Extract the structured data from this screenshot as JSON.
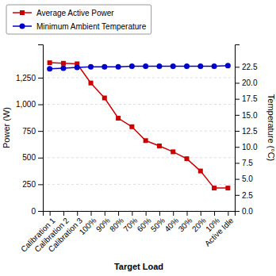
{
  "chart_data": {
    "type": "line",
    "xlabel": "Target Load",
    "ylabel": "Power (W)",
    "y2label": "Temperature (°C)",
    "categories": [
      "Calibration 1",
      "Calibration 2",
      "Calibration 3",
      "100%",
      "90%",
      "80%",
      "70%",
      "60%",
      "50%",
      "40%",
      "30%",
      "20%",
      "10%",
      "Active Idle"
    ],
    "series": [
      {
        "name": "Average Active Power",
        "color": "#cc0000",
        "marker": "square",
        "values": [
          1390,
          1385,
          1380,
          1200,
          1060,
          870,
          790,
          660,
          610,
          555,
          490,
          375,
          215,
          215
        ]
      },
      {
        "name": "Minimum Ambient Temperature",
        "color": "#0000cc",
        "marker": "circle",
        "axis": "y2",
        "values": [
          22.2,
          22.3,
          22.4,
          22.5,
          22.5,
          22.5,
          22.6,
          22.6,
          22.6,
          22.6,
          22.6,
          22.6,
          22.6,
          22.7
        ]
      }
    ],
    "ylim": [
      0,
      1562
    ],
    "yticks": [
      0,
      250,
      500,
      750,
      {
        "value": 1000,
        "label": "1,000"
      },
      {
        "value": 1250,
        "label": "1,250"
      }
    ],
    "y2lim": [
      0.0,
      26.0
    ],
    "y2ticks": [
      {
        "value": 0.0,
        "label": "0.0"
      },
      2.5,
      {
        "value": 5.0,
        "label": "5.0"
      },
      7.5,
      {
        "value": 10.0,
        "label": "10.0"
      },
      12.5,
      {
        "value": 15.0,
        "label": "15.0"
      },
      17.5,
      {
        "value": 20.0,
        "label": "20.0"
      },
      22.5
    ],
    "grid": true,
    "legend": "top-left"
  }
}
